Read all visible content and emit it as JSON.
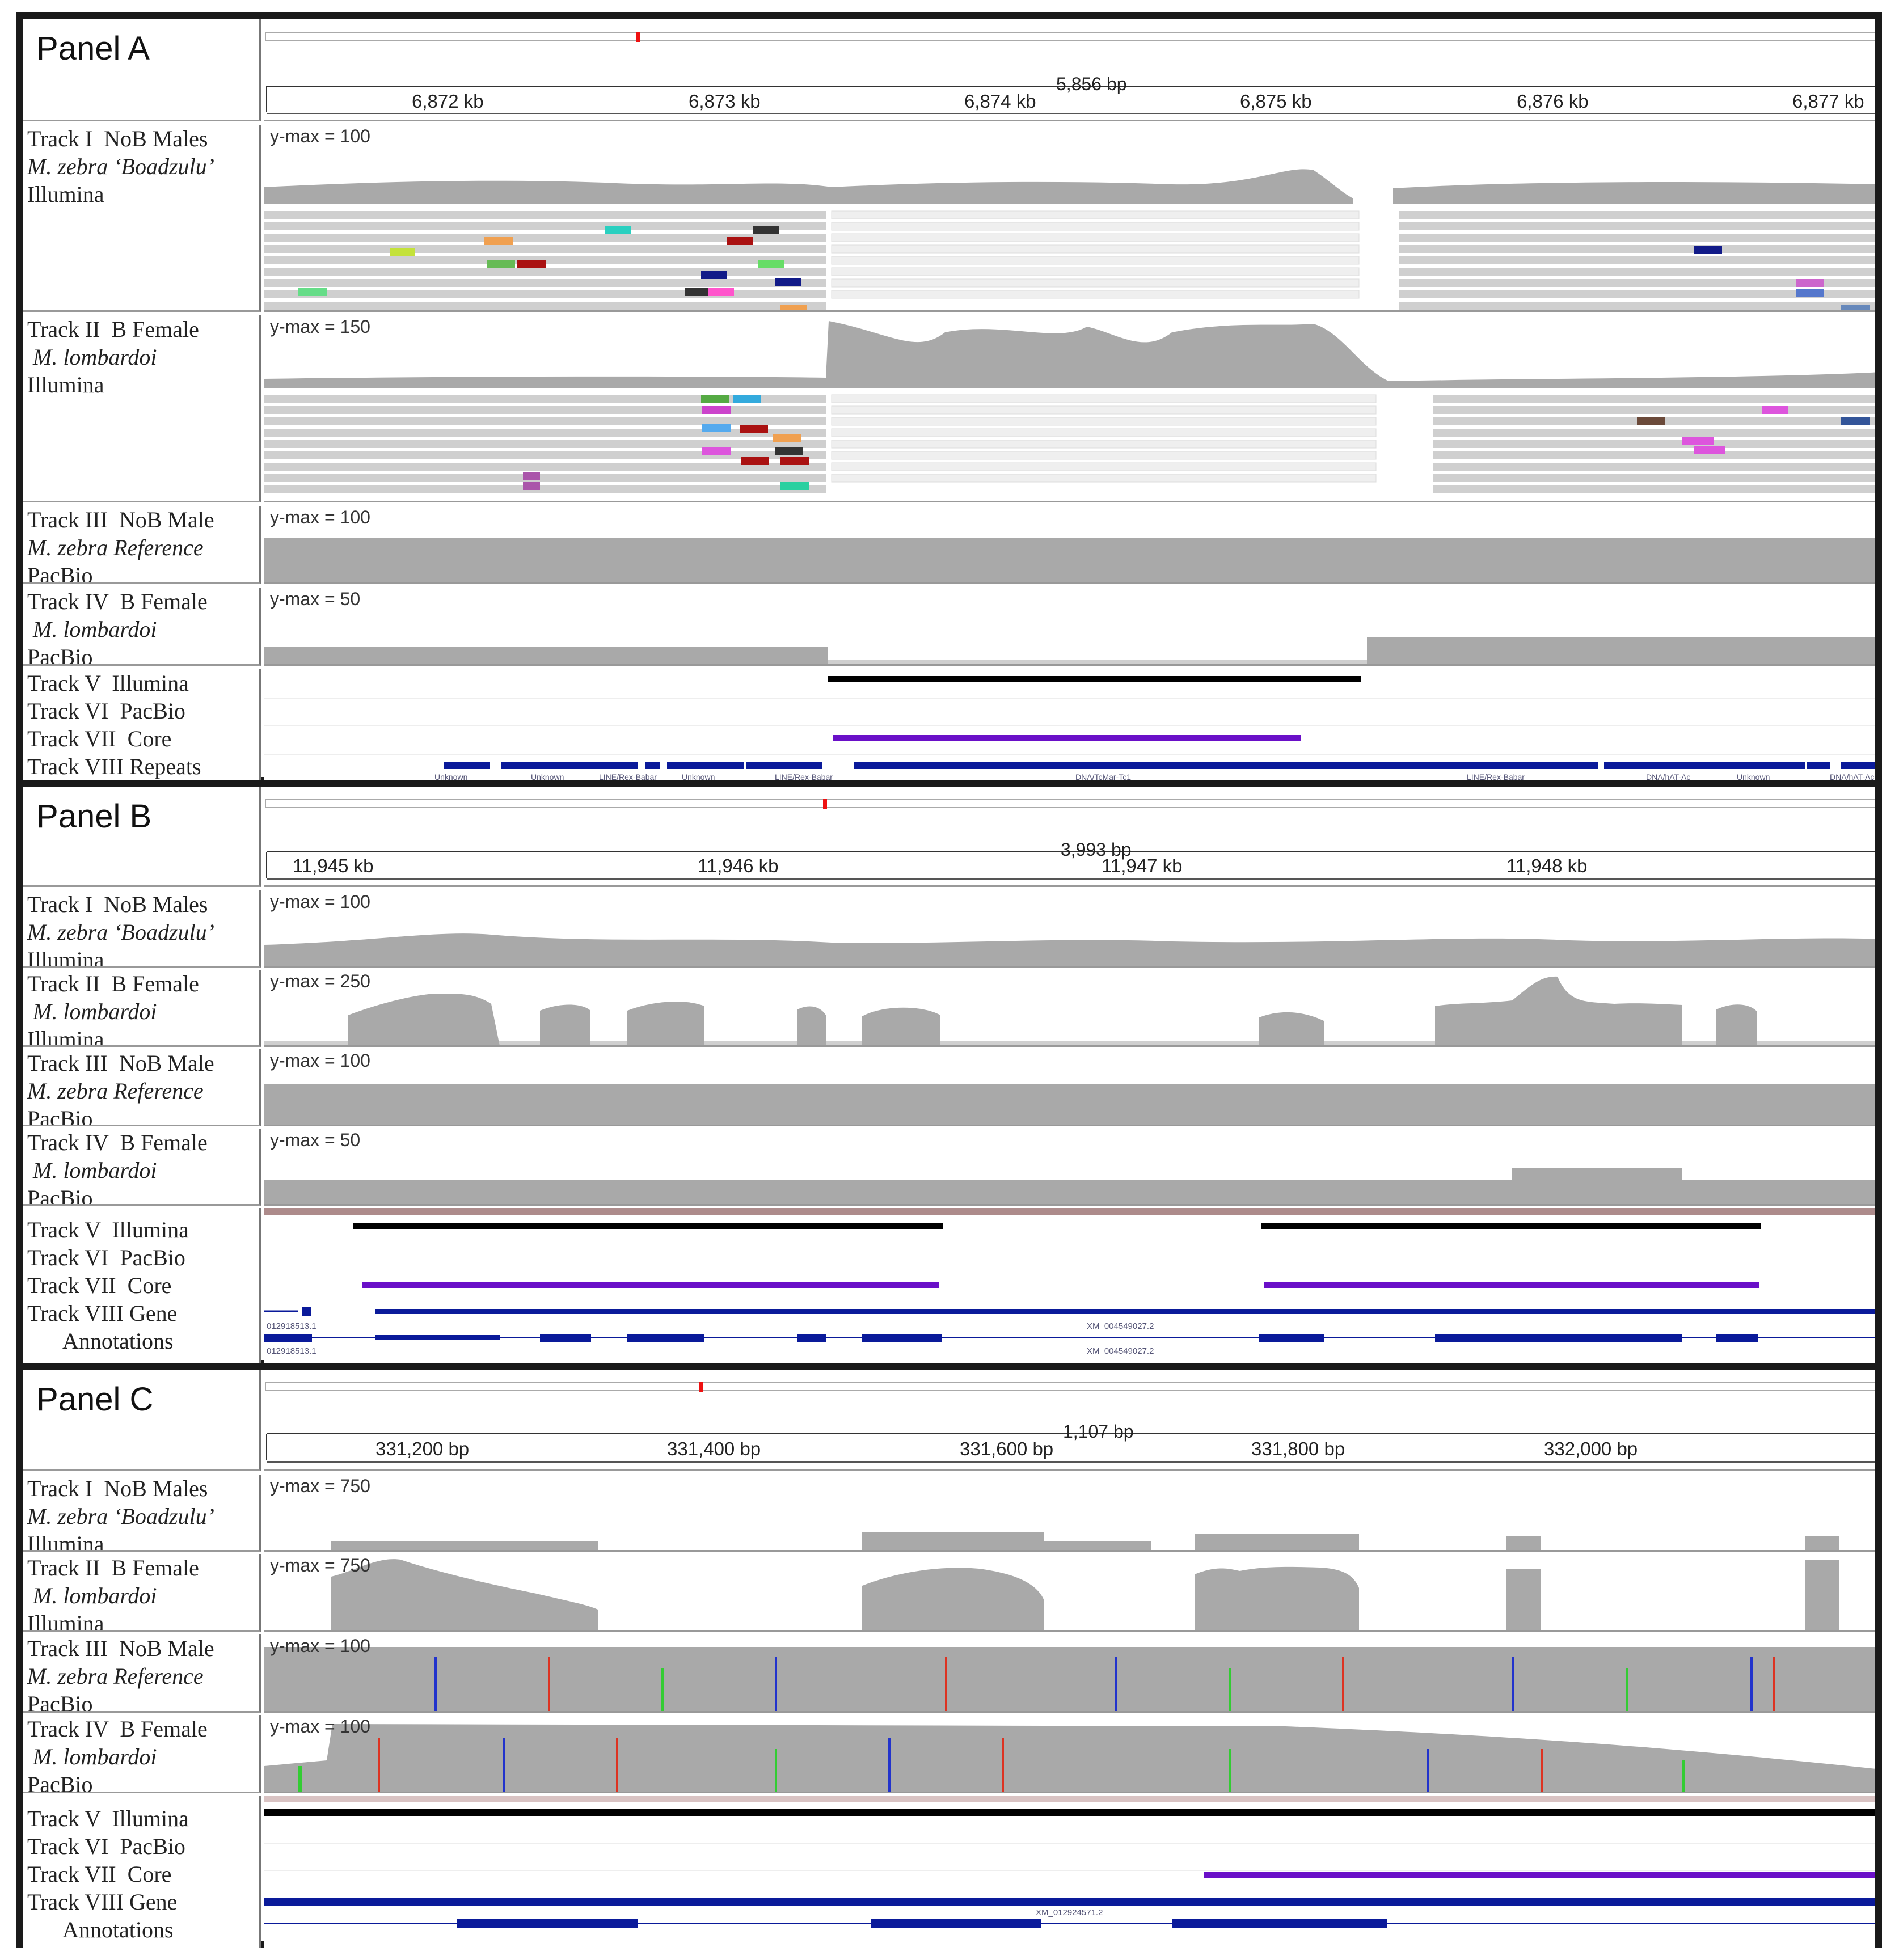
{
  "panels": [
    {
      "id": "A",
      "title": "Panel A",
      "ruler_total": "5,856 bp",
      "ruler_ticks": [
        "6,872 kb",
        "6,873 kb",
        "6,874 kb",
        "6,875 kb",
        "6,876 kb",
        "6,877 kb"
      ],
      "tracks": [
        {
          "lines": [
            "Track I  NoB Males",
            "M. zebra ‘Boadzulu’",
            "Illumina"
          ],
          "ymax": "y-max = 100"
        },
        {
          "lines": [
            "Track II  B Female",
            "M. lombardoi",
            "Illumina"
          ],
          "ymax": "y-max = 150"
        },
        {
          "lines": [
            "Track III  NoB Male",
            "M. zebra Reference",
            "PacBio"
          ],
          "ymax": "y-max = 100"
        },
        {
          "lines": [
            "Track IV  B Female",
            "M. lombardoi",
            "PacBio"
          ],
          "ymax": "y-max = 50"
        }
      ],
      "feature_labels": [
        "Track V  Illumina",
        "Track VI  PacBio",
        "Track VII  Core",
        "Track VIII Repeats"
      ],
      "repeat_names": [
        "Unknown",
        "Unknown",
        "LINE/Rex-Babar",
        "Unknown",
        "LINE/Rex-Babar",
        "DNA/TcMar-Tc1",
        "LINE/Rex-Babar",
        "DNA/hAT-Ac",
        "Unknown",
        "DNA/hAT-Ac"
      ]
    },
    {
      "id": "B",
      "title": "Panel B",
      "ruler_total": "3,993 bp",
      "ruler_ticks": [
        "11,945 kb",
        "11,946 kb",
        "11,947 kb",
        "11,948 kb"
      ],
      "tracks": [
        {
          "lines": [
            "Track I  NoB Males",
            "M. zebra ‘Boadzulu’",
            "Illumina"
          ],
          "ymax": "y-max = 100"
        },
        {
          "lines": [
            "Track II  B Female",
            "M. lombardoi",
            "Illumina"
          ],
          "ymax": "y-max = 250"
        },
        {
          "lines": [
            "Track III  NoB Male",
            "M. zebra Reference",
            "PacBio"
          ],
          "ymax": "y-max = 100"
        },
        {
          "lines": [
            "Track IV  B Female",
            "M. lombardoi",
            "PacBio"
          ],
          "ymax": "y-max = 50"
        }
      ],
      "feature_labels": [
        "Track V  Illumina",
        "Track VI  PacBio",
        "Track VII  Core",
        "Track VIII Gene",
        "Annotations"
      ],
      "gene_names": [
        "012918513.1",
        "XM_004549027.2",
        "012918513.1",
        "XM_004549027.2"
      ]
    },
    {
      "id": "C",
      "title": "Panel C",
      "ruler_total": "1,107 bp",
      "ruler_ticks": [
        "331,200 bp",
        "331,400 bp",
        "331,600 bp",
        "331,800 bp",
        "332,000 bp"
      ],
      "tracks": [
        {
          "lines": [
            "Track I  NoB Males",
            "M. zebra ‘Boadzulu’",
            "Illumina"
          ],
          "ymax": "y-max = 750"
        },
        {
          "lines": [
            "Track II  B Female",
            "M. lombardoi",
            "Illumina"
          ],
          "ymax": "y-max = 750"
        },
        {
          "lines": [
            "Track III  NoB Male",
            "M. zebra Reference",
            "PacBio"
          ],
          "ymax": "y-max = 100"
        },
        {
          "lines": [
            "Track IV  B Female",
            "M. lombardoi",
            "PacBio"
          ],
          "ymax": "y-max = 100"
        }
      ],
      "feature_labels": [
        "Track V  Illumina",
        "Track VI  PacBio",
        "Track VII  Core",
        "Track VIII Gene",
        "Annotations"
      ],
      "gene_names": [
        "XM_012924571.2"
      ]
    }
  ]
}
